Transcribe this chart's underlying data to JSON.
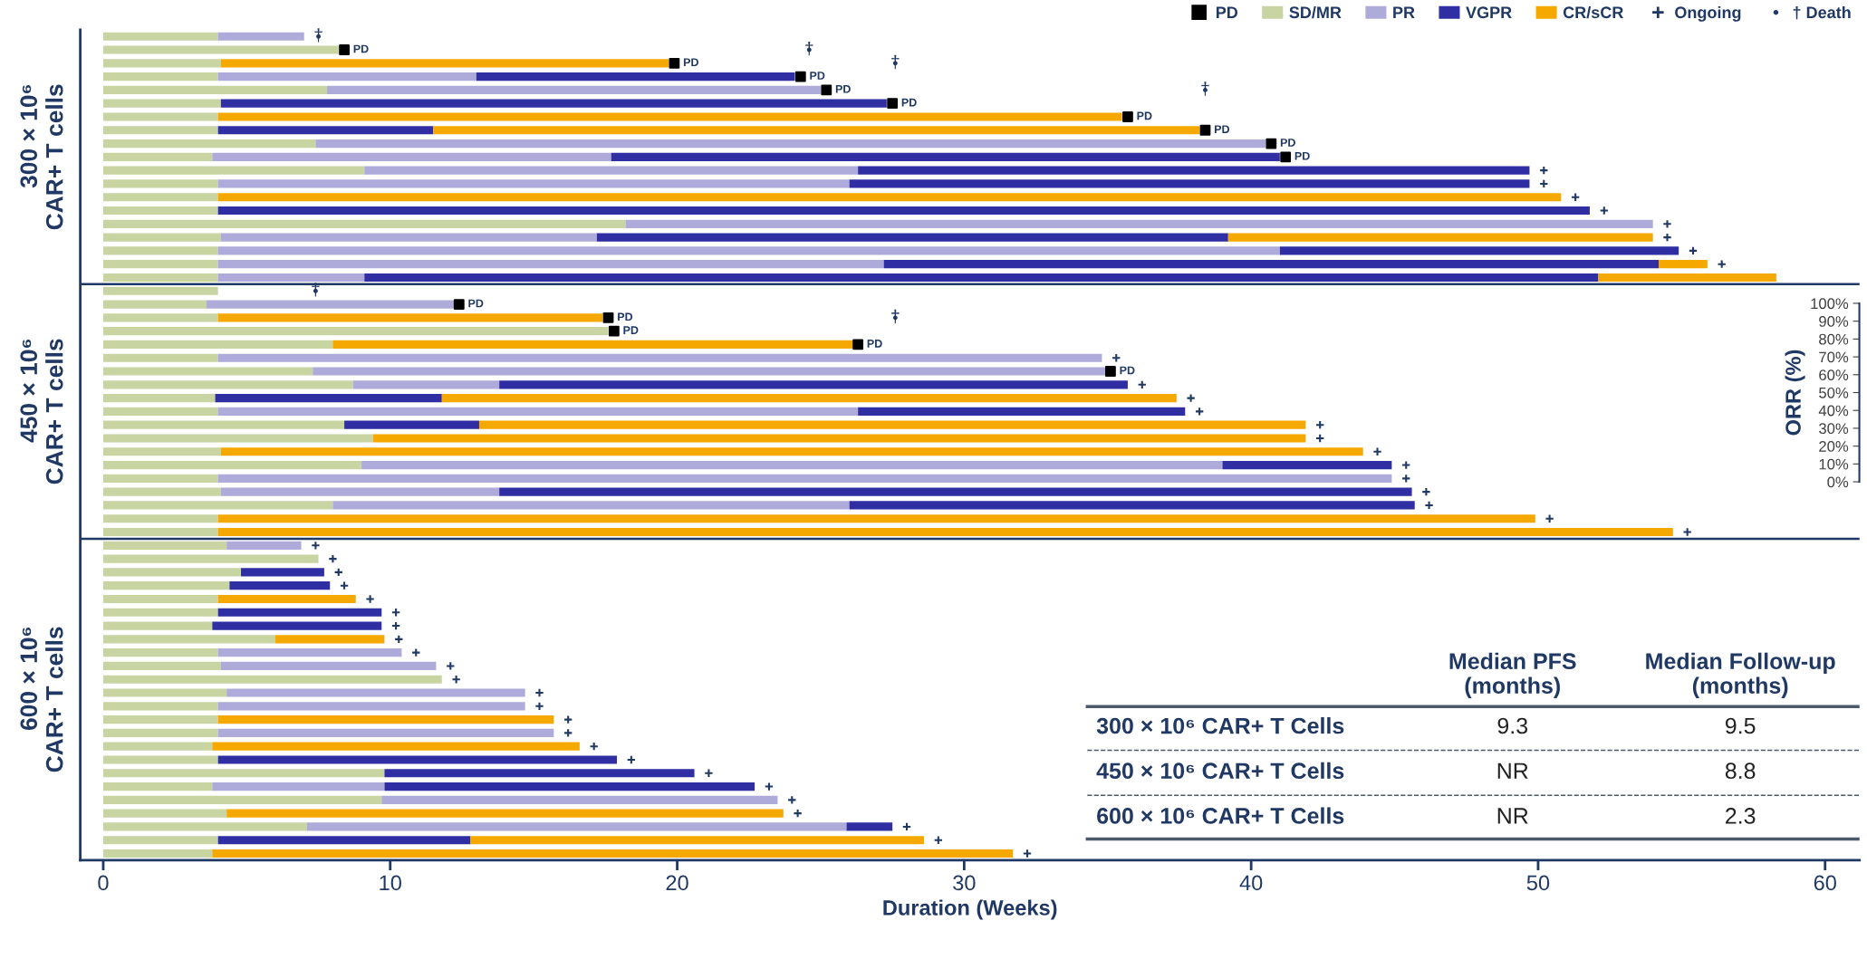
{
  "chart_data": {
    "type": "bar",
    "orientation": "horizontal",
    "stacked": true,
    "xlabel": "Duration (Weeks)",
    "legend": "top right",
    "tick_labels": "x",
    "categories": [
      null,
      null,
      null,
      null,
      null,
      null,
      null,
      null,
      null,
      null,
      null,
      null,
      null,
      null,
      null,
      null,
      null,
      null,
      null,
      null,
      null,
      null,
      null,
      null,
      null,
      null,
      null,
      null,
      null,
      null,
      null,
      null,
      null,
      null,
      null,
      null,
      null,
      null,
      null,
      null,
      null,
      null,
      null,
      null,
      null,
      null,
      null,
      null,
      null,
      null,
      null,
      null,
      null,
      null,
      null,
      null,
      null,
      null,
      null,
      null,
      null,
      null
    ],
    "xlim": [
      -0.8,
      61.2
    ],
    "xticks": [
      0,
      10,
      20,
      30,
      40,
      50,
      60
    ],
    "y2label": "ORR (%)",
    "annotations": [
      "300 × 10⁶\nCAR+ T cells",
      "450 × 10⁶\nCAR+ T cells",
      "600 × 10⁶\nCAR+ T cells",
      "Median PFS\n(months)",
      "Median Follow-up\n(months)",
      "300 × 10⁶ CAR+ T Cells",
      "9.3",
      "9.5",
      "450 × 10⁶ CAR+ T Cells",
      "NR",
      "8.8",
      "600 × 10⁶ CAR+ T Cells",
      "NR",
      "2.3",
      "0%",
      "10%",
      "20%",
      "30%",
      "40%",
      "50%",
      "60%",
      "70%",
      "80%",
      "90%",
      "100%"
    ],
    "series": [
      {
        "name": "PD",
        "type": "scatter",
        "marker": "square",
        "color": "#000000",
        "values": [
          null,
          8.4,
          19.9,
          24.3,
          25.2,
          27.5,
          35.7,
          38.4,
          40.7,
          41.2,
          null,
          null,
          null,
          null,
          null,
          null,
          null,
          null,
          null,
          null,
          12.4,
          17.6,
          17.8,
          26.3,
          null,
          35.1,
          null,
          null,
          null,
          null,
          null,
          null,
          null,
          null,
          null,
          null,
          null,
          null,
          null,
          null,
          null,
          null,
          null,
          null,
          null,
          null,
          null,
          null,
          null,
          null,
          null,
          null,
          null,
          null,
          null,
          null,
          null,
          null,
          null,
          null,
          null,
          null
        ],
        "value_labels": [
          null,
          "PD",
          "PD",
          "PD",
          "PD",
          "PD",
          "PD",
          "PD",
          "PD",
          "PD",
          null,
          null,
          null,
          null,
          null,
          null,
          null,
          null,
          null,
          null,
          "PD",
          "PD",
          "PD",
          "PD",
          null,
          "PD",
          null,
          null,
          null,
          null,
          null,
          null,
          null,
          null,
          null,
          null,
          null,
          null,
          null,
          null,
          null,
          null,
          null,
          null,
          null,
          null,
          null,
          null,
          null,
          null,
          null,
          null,
          null,
          null,
          null,
          null,
          null,
          null,
          null,
          null,
          null,
          null
        ]
      },
      {
        "name": "SD/MR",
        "color": "#c9d4a3",
        "values": [
          4,
          8.2,
          4.1,
          4,
          7.8,
          4.1,
          4,
          4,
          7.4,
          3.8,
          9.1,
          4,
          4,
          4,
          18.2,
          4.1,
          4,
          4,
          4,
          4,
          3.6,
          4,
          17.6,
          8,
          4,
          7.3,
          8.7,
          3.9,
          4,
          8.4,
          9.4,
          4.1,
          9,
          4,
          4.1,
          8,
          4,
          4,
          4.3,
          7.5,
          4.8,
          4.4,
          4,
          4,
          3.8,
          6,
          4,
          4.1,
          11.8,
          4.3,
          4,
          4,
          4,
          3.8,
          4,
          9.8,
          3.8,
          9.7,
          4.3,
          7.1,
          4,
          3.8
        ]
      },
      {
        "name": "PR",
        "color": "#aeaad9",
        "values": [
          3.0,
          null,
          null,
          9,
          17.2,
          null,
          null,
          null,
          33.1,
          13.9,
          17.2,
          22,
          null,
          null,
          35.8,
          13.1,
          37,
          23.2,
          5.1,
          null,
          8.7,
          null,
          null,
          null,
          30.8,
          27.7,
          5.1,
          null,
          22.3,
          null,
          null,
          null,
          30,
          40.9,
          9.7,
          18,
          null,
          null,
          2.6,
          null,
          null,
          null,
          null,
          null,
          null,
          null,
          6.4,
          7.5,
          null,
          10.4,
          10.7,
          null,
          11.7,
          null,
          null,
          null,
          6,
          13.8,
          null,
          18.8,
          null,
          null
        ]
      },
      {
        "name": "VGPR",
        "color": "#2f2ea3",
        "values": [
          null,
          null,
          null,
          11.1,
          null,
          23.2,
          null,
          7.5,
          null,
          23.3,
          23.4,
          23.7,
          null,
          47.8,
          null,
          22,
          13.9,
          27,
          43,
          null,
          null,
          null,
          null,
          null,
          null,
          null,
          21.9,
          7.9,
          11.4,
          4.7,
          null,
          null,
          5.9,
          null,
          31.8,
          19.7,
          null,
          null,
          null,
          null,
          2.9,
          3.5,
          null,
          5.7,
          5.9,
          null,
          null,
          null,
          null,
          null,
          null,
          null,
          null,
          null,
          13.9,
          10.8,
          12.9,
          null,
          null,
          1.6,
          8.8,
          null
        ]
      },
      {
        "name": "CR/sCR",
        "color": "#f5a800",
        "values": [
          null,
          null,
          15.6,
          null,
          null,
          null,
          31.5,
          26.7,
          null,
          null,
          null,
          null,
          46.8,
          null,
          null,
          14.8,
          null,
          1.7,
          6.2,
          null,
          null,
          13.4,
          null,
          18.2,
          null,
          null,
          null,
          25.6,
          null,
          28.8,
          32.5,
          39.8,
          null,
          null,
          null,
          null,
          45.9,
          50.7,
          null,
          null,
          null,
          null,
          4.8,
          null,
          null,
          3.8,
          null,
          null,
          null,
          null,
          null,
          11.7,
          null,
          12.8,
          null,
          null,
          null,
          null,
          19.4,
          null,
          15.8,
          27.9
        ]
      },
      {
        "name": "Ongoing",
        "type": "scatter",
        "marker": "cross",
        "color": "#1f3864",
        "values": [
          null,
          null,
          null,
          null,
          null,
          null,
          null,
          null,
          null,
          null,
          50.2,
          50.2,
          51.3,
          52.3,
          54.5,
          54.5,
          55.4,
          56.4,
          null,
          null,
          null,
          null,
          null,
          null,
          35.3,
          null,
          36.2,
          37.9,
          38.2,
          42.4,
          42.4,
          44.4,
          45.4,
          45.4,
          46.1,
          46.2,
          50.4,
          55.2,
          7.4,
          8,
          8.2,
          8.4,
          9.3,
          10.2,
          10.2,
          10.3,
          10.9,
          12.1,
          12.3,
          15.2,
          15.2,
          16.2,
          16.2,
          17.1,
          18.4,
          21.1,
          23.2,
          24,
          24.2,
          28,
          29.1,
          32.2
        ]
      },
      {
        "name": "† Death",
        "type": "scatter",
        "marker": "circle",
        "color": "#1f3864",
        "values": [
          7.5,
          24.6,
          27.6,
          null,
          38.4,
          null,
          null,
          null,
          null,
          null,
          null,
          null,
          null,
          null,
          null,
          null,
          null,
          null,
          null,
          7.4,
          null,
          27.6,
          null,
          null,
          null,
          null,
          null,
          null,
          null,
          null,
          null,
          null,
          null,
          null,
          null,
          null,
          null,
          null,
          null,
          null,
          null,
          null,
          null,
          null,
          null,
          null,
          null,
          null,
          null,
          null,
          null,
          null,
          null,
          null,
          null,
          null,
          null,
          null,
          null,
          null,
          null,
          null
        ],
        "value_labels": [
          "†",
          "†",
          "†",
          null,
          "†",
          null,
          null,
          null,
          null,
          null,
          null,
          null,
          null,
          null,
          null,
          null,
          null,
          null,
          null,
          "†",
          null,
          "†",
          null,
          null,
          null,
          null,
          null,
          null,
          null,
          null,
          null,
          null,
          null,
          null,
          null,
          null,
          null,
          null,
          null,
          null,
          null,
          null,
          null,
          null,
          null,
          null,
          null,
          null,
          null,
          null,
          null,
          null,
          null,
          null,
          null,
          null,
          null,
          null,
          null,
          null,
          null,
          null
        ]
      }
    ]
  }
}
